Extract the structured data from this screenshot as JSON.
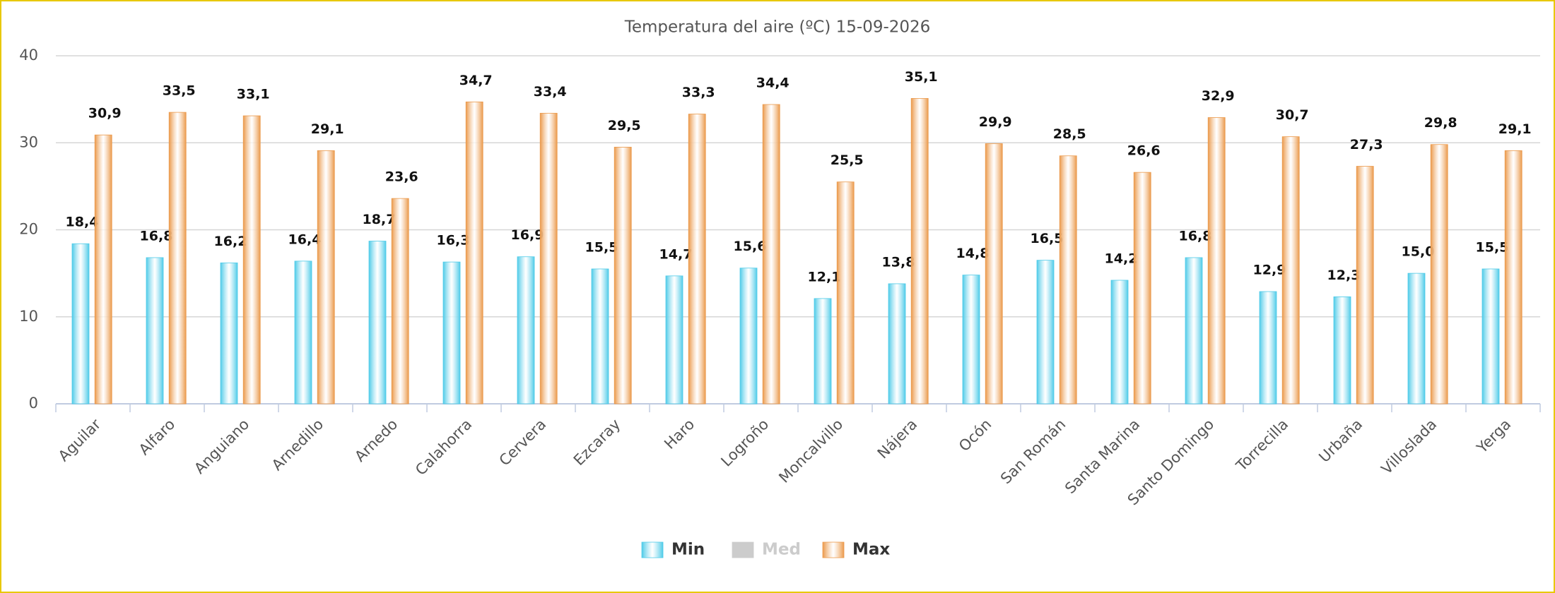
{
  "chart_data": {
    "type": "bar",
    "title": "Temperatura del aire (ºC) 15-09-2026",
    "categories": [
      "Aguilar",
      "Alfaro",
      "Anguiano",
      "Arnedillo",
      "Arnedo",
      "Calahorra",
      "Cervera",
      "Ezcaray",
      "Haro",
      "Logroño",
      "Moncalvillo",
      "Nájera",
      "Ocón",
      "San Román",
      "Santa Marina",
      "Santo Domingo",
      "Torrecilla",
      "Urbaña",
      "Villoslada",
      "Yerga"
    ],
    "series": [
      {
        "name": "Min",
        "color": "#4fcbe8",
        "values": [
          18.4,
          16.8,
          16.2,
          16.4,
          18.7,
          16.3,
          16.9,
          15.5,
          14.7,
          15.6,
          12.1,
          13.8,
          14.8,
          16.5,
          14.2,
          16.8,
          12.9,
          12.3,
          15.0,
          15.5
        ],
        "value_labels": [
          "18,4",
          "16,8",
          "16,2",
          "16,4",
          "18,7",
          "16,3",
          "16,9",
          "15,5",
          "14,7",
          "15,6",
          "12,1",
          "13,8",
          "14,8",
          "16,5",
          "14,2",
          "16,8",
          "12,9",
          "12,3",
          "15,0",
          "15,5"
        ]
      },
      {
        "name": "Med",
        "color": "#cccccc",
        "visible": false,
        "values": [
          null,
          null,
          null,
          null,
          null,
          null,
          null,
          null,
          null,
          null,
          null,
          null,
          null,
          null,
          null,
          null,
          null,
          null,
          null,
          null
        ]
      },
      {
        "name": "Max",
        "color": "#eb9a4c",
        "values": [
          30.9,
          33.5,
          33.1,
          29.1,
          23.6,
          34.7,
          33.4,
          29.5,
          33.3,
          34.4,
          25.5,
          35.1,
          29.9,
          28.5,
          26.6,
          32.9,
          30.7,
          27.3,
          29.8,
          29.1
        ],
        "value_labels": [
          "30,9",
          "33,5",
          "33,1",
          "29,1",
          "23,6",
          "34,7",
          "33,4",
          "29,5",
          "33,3",
          "34,4",
          "25,5",
          "35,1",
          "29,9",
          "28,5",
          "26,6",
          "32,9",
          "30,7",
          "27,3",
          "29,8",
          "29,1"
        ]
      }
    ],
    "ylim": [
      0,
      40
    ],
    "yticks": [
      0,
      10,
      20,
      30,
      40
    ],
    "grid": true,
    "legend": "bottom"
  }
}
